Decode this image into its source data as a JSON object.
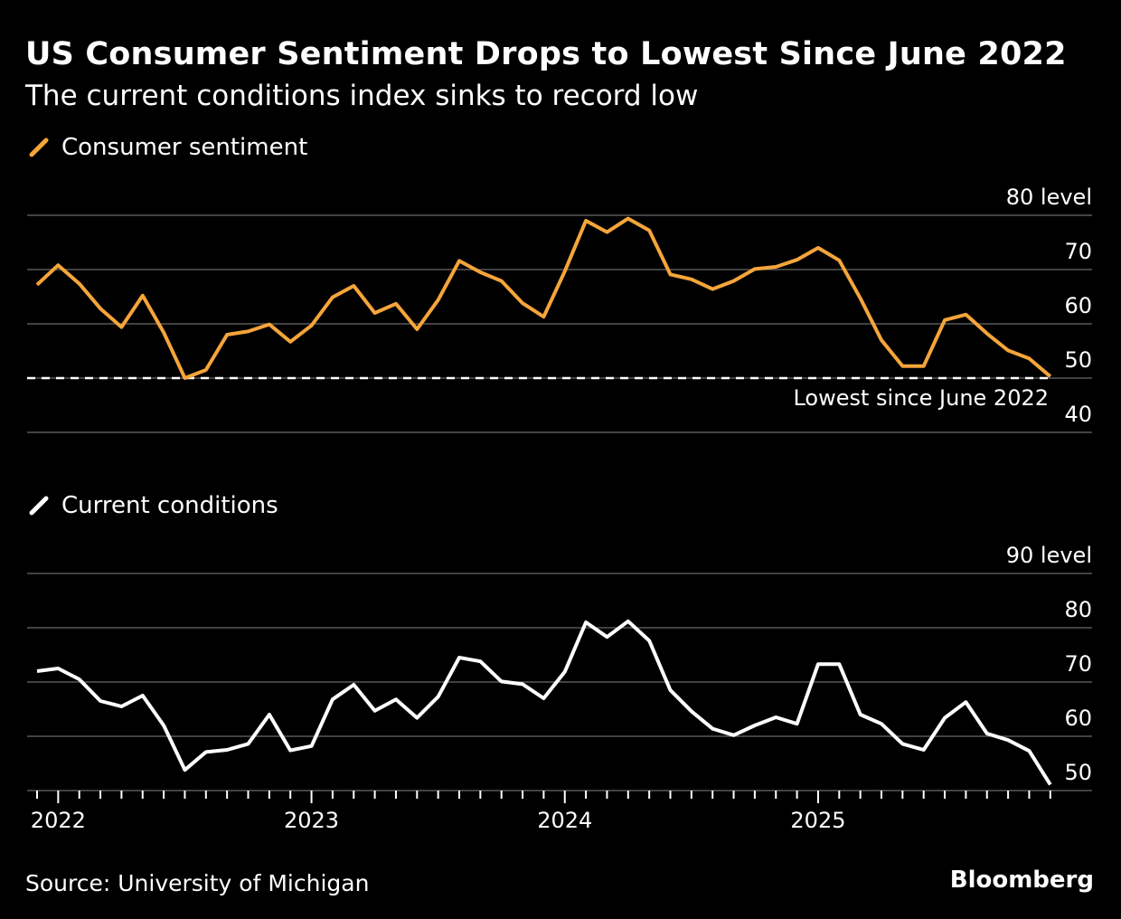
{
  "header": {
    "title": "US Consumer Sentiment Drops to Lowest Since June 2022",
    "subtitle": "The current conditions index sinks to record low"
  },
  "footer": {
    "source": "Source: University of Michigan",
    "brand": "Bloomberg"
  },
  "colors": {
    "sentiment": "#f5a53a",
    "current": "#ffffff",
    "grid": "#6a6a6a",
    "background": "#000000"
  },
  "chart_data": [
    {
      "type": "line",
      "title": "Consumer sentiment",
      "series": [
        {
          "name": "Consumer sentiment",
          "values": [
            67.2,
            70.8,
            67.4,
            62.8,
            59.4,
            65.2,
            58.4,
            50.0,
            51.5,
            58.0,
            58.6,
            59.9,
            56.7,
            59.7,
            64.9,
            67.0,
            62.0,
            63.7,
            59.0,
            64.4,
            71.6,
            69.5,
            67.9,
            63.8,
            61.3,
            69.7,
            79.0,
            76.9,
            79.4,
            77.2,
            69.1,
            68.2,
            66.4,
            67.9,
            70.1,
            70.5,
            71.8,
            74.0,
            71.7,
            64.7,
            57.0,
            52.2,
            52.2,
            60.7,
            61.7,
            58.2,
            55.1,
            53.6,
            50.3
          ]
        }
      ],
      "ylim": [
        40,
        80
      ],
      "yticks": [
        80,
        70,
        60,
        50,
        40
      ],
      "ytick_labels": [
        "80 level",
        "70",
        "60",
        "50",
        "40"
      ],
      "reference_line": {
        "value": 50.0,
        "style": "dashed",
        "label": "Lowest since June 2022"
      }
    },
    {
      "type": "line",
      "title": "Current conditions",
      "series": [
        {
          "name": "Current conditions",
          "values": [
            72.0,
            72.5,
            70.5,
            66.5,
            65.5,
            67.5,
            62.0,
            53.8,
            57.1,
            57.5,
            58.6,
            64.0,
            57.4,
            58.2,
            66.8,
            69.5,
            64.7,
            66.8,
            63.4,
            67.3,
            74.5,
            73.8,
            70.1,
            69.6,
            67.0,
            71.9,
            81.0,
            78.3,
            81.2,
            77.6,
            68.5,
            64.6,
            61.4,
            60.2,
            62.0,
            63.5,
            62.3,
            73.3,
            73.3,
            64.0,
            62.3,
            58.6,
            57.5,
            63.4,
            66.3,
            60.5,
            59.3,
            57.3,
            51.1
          ]
        }
      ],
      "ylim": [
        50,
        90
      ],
      "yticks": [
        90,
        80,
        70,
        60,
        50
      ],
      "ytick_labels": [
        "90 level",
        "80",
        "70",
        "60",
        "50"
      ]
    }
  ],
  "xaxis": {
    "start": "Dec 2021",
    "end": "Dec 2025",
    "tick_labels": [
      "2022",
      "2023",
      "2024",
      "2025"
    ]
  }
}
